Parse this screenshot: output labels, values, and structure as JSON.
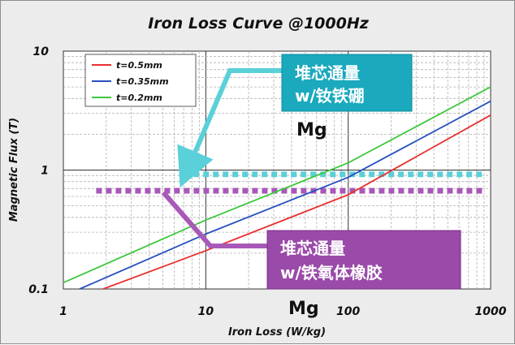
{
  "chart_data": {
    "type": "line",
    "title": "Iron Loss Curve @1000Hz",
    "xlabel": "Iron Loss (W/kg)",
    "ylabel": "Magnetic Flux (T)",
    "x_scale": "log",
    "y_scale": "log",
    "xlim": [
      1,
      1000
    ],
    "ylim": [
      0.1,
      10
    ],
    "x_ticks": [
      "1",
      "10",
      "100",
      "1000"
    ],
    "y_ticks": [
      "0.1",
      "1",
      "10"
    ],
    "grid": true,
    "legend_position": "top-left",
    "series": [
      {
        "name": "t=0.5mm",
        "color": "#e83030",
        "x": [
          1.9,
          10,
          100,
          1000
        ],
        "y": [
          0.1,
          0.21,
          0.62,
          2.9
        ]
      },
      {
        "name": "t=0.35mm",
        "color": "#2850c0",
        "x": [
          1.3,
          10,
          100,
          1000
        ],
        "y": [
          0.1,
          0.29,
          0.87,
          3.8
        ]
      },
      {
        "name": "t=0.2mm",
        "color": "#3ec83e",
        "x": [
          1,
          10,
          100,
          1000
        ],
        "y": [
          0.113,
          0.38,
          1.15,
          5.0
        ]
      }
    ],
    "reference_lines": [
      {
        "color": "#5ad0d8",
        "y": 0.92,
        "x_from": 7,
        "x_to": 880
      },
      {
        "color": "#a859b8",
        "y": 0.67,
        "x_from": 1.7,
        "x_to": 880
      }
    ],
    "annotations": [
      {
        "lines": [
          "堆芯通量",
          "w/钕铁硼"
        ],
        "box_fill": "#1aa9bd",
        "text_color": "#ffffff"
      },
      {
        "lines": [
          "Mg"
        ],
        "text_color": "#111111"
      },
      {
        "lines": [
          "堆芯通量",
          "w/铁氧体橡胶"
        ],
        "box_fill": "#9a4aa8",
        "text_color": "#ffffff"
      },
      {
        "lines": [
          "Mg"
        ],
        "text_color": "#111111"
      }
    ]
  }
}
